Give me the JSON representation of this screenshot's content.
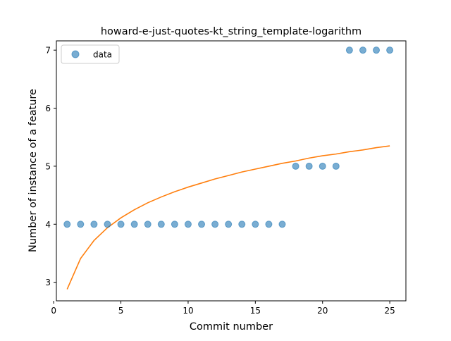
{
  "chart_data": {
    "type": "scatter",
    "title": "howard-e-just-quotes-kt_string_template-logarithm",
    "xlabel": "Commit number",
    "ylabel": "Number of instance of a feature",
    "xlim": [
      0.2,
      26.2
    ],
    "ylim": [
      2.68,
      7.16
    ],
    "xticks": [
      0,
      5,
      10,
      15,
      20,
      25
    ],
    "yticks": [
      3,
      4,
      5,
      6,
      7
    ],
    "grid": false,
    "legend_position": "top-left",
    "series": [
      {
        "name": "data",
        "kind": "scatter",
        "color": "#1f77b4",
        "x": [
          1,
          2,
          3,
          4,
          5,
          6,
          7,
          8,
          9,
          10,
          11,
          12,
          13,
          14,
          15,
          16,
          17,
          18,
          19,
          20,
          21,
          22,
          23,
          24,
          25
        ],
        "y": [
          4,
          4,
          4,
          4,
          4,
          4,
          4,
          4,
          4,
          4,
          4,
          4,
          4,
          4,
          4,
          4,
          4,
          5,
          5,
          5,
          5,
          7,
          7,
          7,
          7
        ]
      },
      {
        "kind": "line",
        "color": "#ff7f0e",
        "x": [
          1,
          2,
          3,
          4,
          5,
          6,
          7,
          8,
          9,
          10,
          11,
          12,
          13,
          14,
          15,
          16,
          17,
          18,
          19,
          20,
          21,
          22,
          23,
          24,
          25
        ],
        "y": [
          2.88,
          3.41,
          3.72,
          3.94,
          4.11,
          4.25,
          4.37,
          4.47,
          4.56,
          4.64,
          4.71,
          4.78,
          4.84,
          4.9,
          4.95,
          5.0,
          5.05,
          5.09,
          5.14,
          5.18,
          5.21,
          5.25,
          5.28,
          5.32,
          5.35
        ]
      }
    ]
  }
}
